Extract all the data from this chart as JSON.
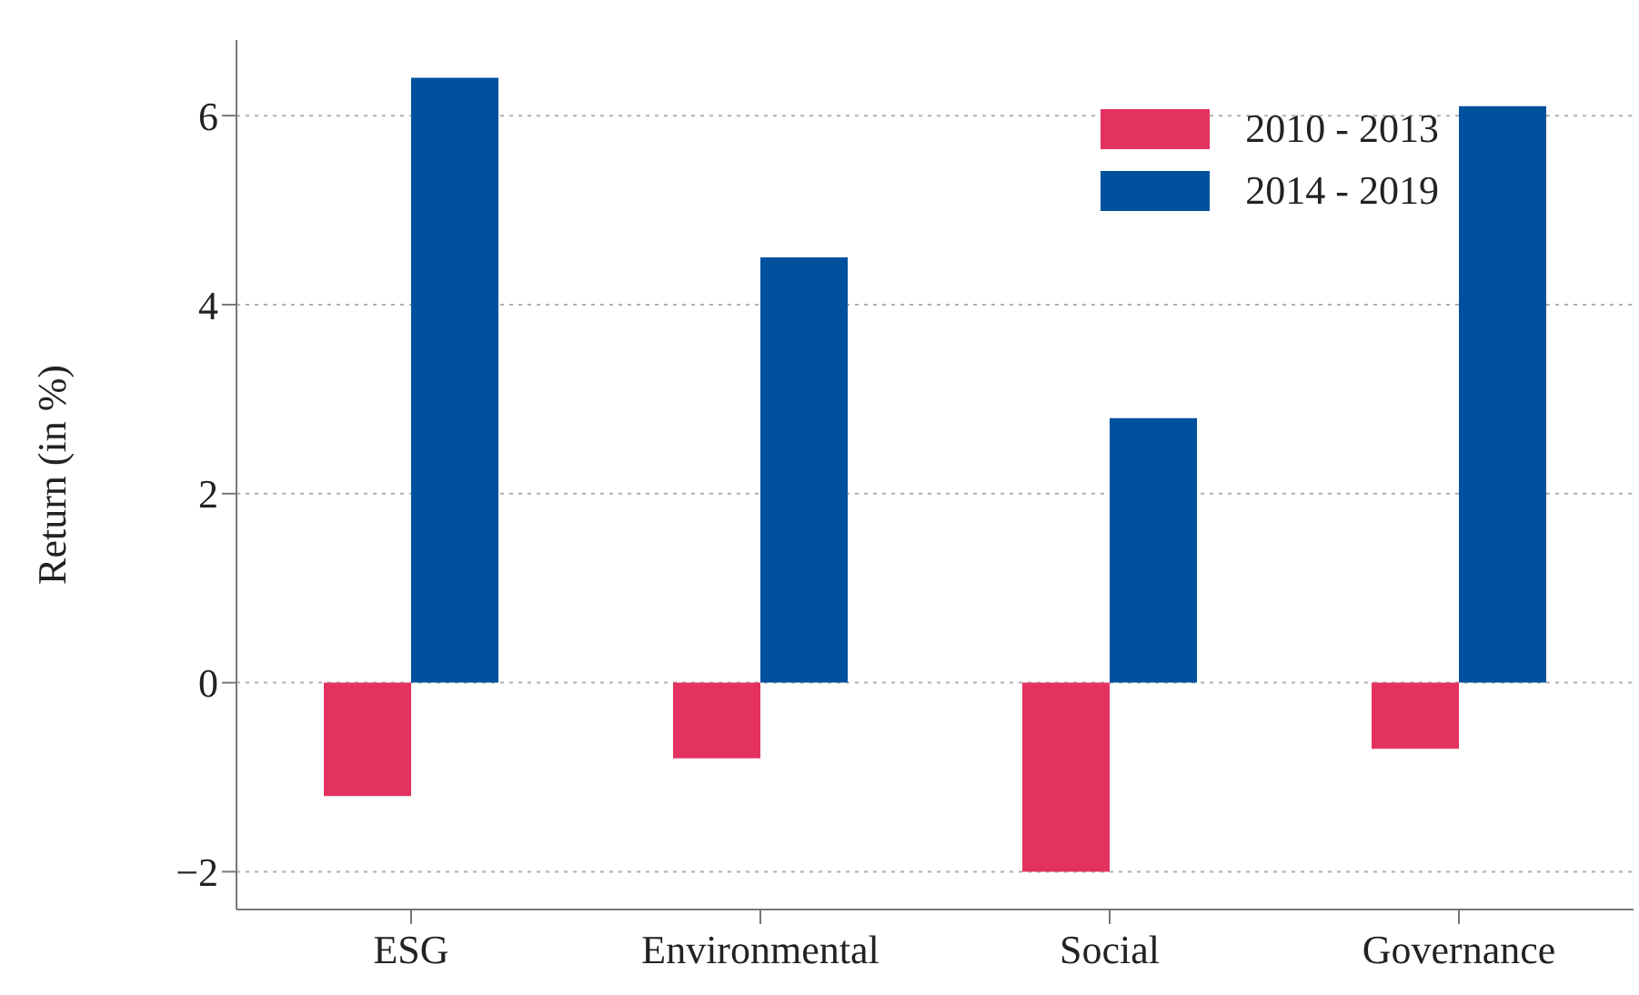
{
  "chart_data": {
    "type": "bar",
    "ylabel": "Return (in %)",
    "categories": [
      "ESG",
      "Environmental",
      "Social",
      "Governance"
    ],
    "series": [
      {
        "name": "2010 - 2013",
        "color": "#e3325f",
        "values": [
          -1.2,
          -0.8,
          -2.0,
          -0.7
        ]
      },
      {
        "name": "2014 - 2019",
        "color": "#00509e",
        "values": [
          6.4,
          4.5,
          2.8,
          6.1
        ]
      }
    ],
    "ylim": [
      -2.4,
      6.8
    ],
    "yticks": [
      {
        "value": -2,
        "label": "−2"
      },
      0,
      2,
      4,
      6
    ],
    "grid": "y",
    "legend": "top right"
  }
}
